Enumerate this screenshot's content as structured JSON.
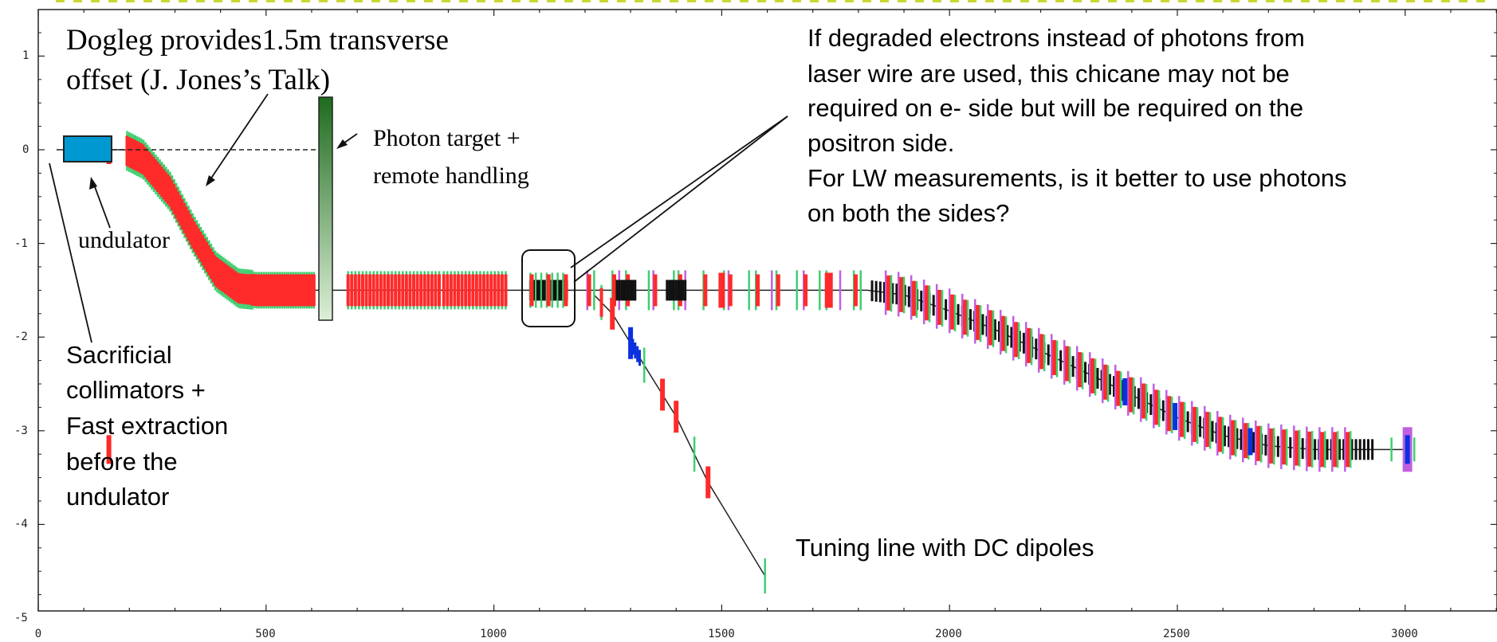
{
  "plot": {
    "x_range": [
      0,
      3200
    ],
    "y_range": [
      -5,
      1.5
    ],
    "x_ticks": [
      "0",
      "500",
      "1000",
      "1500",
      "2000",
      "2500",
      "3000"
    ],
    "y_ticks": [
      "1",
      "0",
      "-1",
      "-2",
      "-3",
      "-4",
      "-5"
    ],
    "colors": {
      "frame": "#222222",
      "beamline": "#222222",
      "dipole": "#ff2a2a",
      "quad": "#3ecf70",
      "sextupole": "#c060e0",
      "corrector": "#0a30e0",
      "undulator_fill": "#0098d0",
      "target_top": "#1e6b1e",
      "target_bottom": "#d8ecd0",
      "dots": "#c8d830"
    }
  },
  "annotations": {
    "dogleg_line1": "Dogleg provides1.5m transverse",
    "dogleg_line2": "offset  (J. Jones’s Talk)",
    "photon_target_line1": "Photon target +",
    "photon_target_line2": "remote handling",
    "undulator": "undulator",
    "collimators_lines": [
      "Sacrificial",
      "collimators +",
      "Fast extraction",
      "before the",
      "undulator"
    ],
    "chicane_lines": [
      "If degraded electrons instead of photons from",
      "laser wire are used, this chicane may not be",
      "required on e- side but will be required on the",
      "positron side.",
      "For LW measurements, is it better to use photons",
      "on both the sides?"
    ],
    "tuning_line": "Tuning line with DC dipoles"
  }
}
